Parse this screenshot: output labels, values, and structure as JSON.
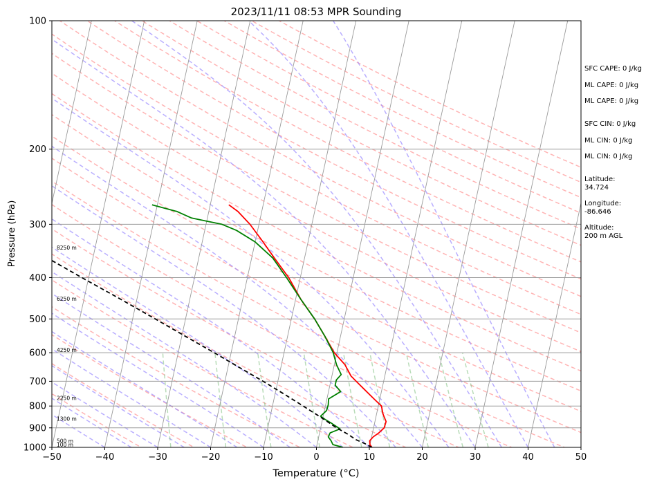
{
  "chart_data": {
    "type": "line",
    "title": "2023/11/11 08:53 MPR Sounding",
    "xlabel": "Temperature (°C)",
    "ylabel": "Pressure (hPa)",
    "xlim": [
      -50,
      50
    ],
    "ylim": [
      1000,
      100
    ],
    "y_scale": "log",
    "skew": true,
    "x_ticks": [
      "−50",
      "−40",
      "−30",
      "−20",
      "−10",
      "0",
      "10",
      "20",
      "30",
      "40",
      "50"
    ],
    "y_ticks": [
      {
        "p": 100,
        "label": "100"
      },
      {
        "p": 200,
        "label": "200"
      },
      {
        "p": 300,
        "label": "300"
      },
      {
        "p": 400,
        "label": "400"
      },
      {
        "p": 500,
        "label": "500"
      },
      {
        "p": 600,
        "label": "600"
      },
      {
        "p": 700,
        "label": "700"
      },
      {
        "p": 800,
        "label": "800"
      },
      {
        "p": 900,
        "label": "900"
      },
      {
        "p": 1000,
        "label": "1000"
      }
    ],
    "height_labels": [
      {
        "p": 1000,
        "label": "100 m"
      },
      {
        "p": 980,
        "label": "500 m"
      },
      {
        "p": 869,
        "label": "1300 m"
      },
      {
        "p": 778,
        "label": "2250 m"
      },
      {
        "p": 600,
        "label": "4250 m"
      },
      {
        "p": 455,
        "label": "6250 m"
      },
      {
        "p": 345,
        "label": "8250 m"
      }
    ],
    "series": [
      {
        "color": "#ff0000",
        "points": [
          [
            1000,
            10.5
          ],
          [
            985,
            10.0
          ],
          [
            965,
            9.8
          ],
          [
            945,
            10.3
          ],
          [
            925,
            11.2
          ],
          [
            900,
            12.0
          ],
          [
            870,
            12.1
          ],
          [
            835,
            11.2
          ],
          [
            800,
            10.6
          ],
          [
            770,
            8.9
          ],
          [
            730,
            6.6
          ],
          [
            700,
            4.8
          ],
          [
            680,
            3.6
          ],
          [
            640,
            2.0
          ],
          [
            600,
            -0.5
          ],
          [
            550,
            -2.9
          ],
          [
            500,
            -5.6
          ],
          [
            450,
            -9.0
          ],
          [
            400,
            -12.2
          ],
          [
            360,
            -15.7
          ],
          [
            330,
            -18.5
          ],
          [
            300,
            -21.7
          ],
          [
            280,
            -24.5
          ],
          [
            270,
            -26.5
          ]
        ]
      },
      {
        "color": "#008000",
        "points": [
          [
            1000,
            5.0
          ],
          [
            985,
            3.0
          ],
          [
            965,
            2.5
          ],
          [
            945,
            1.8
          ],
          [
            925,
            2.0
          ],
          [
            905,
            3.7
          ],
          [
            880,
            2.0
          ],
          [
            860,
            0.5
          ],
          [
            845,
            -0.5
          ],
          [
            820,
            0.4
          ],
          [
            795,
            0.5
          ],
          [
            770,
            0.3
          ],
          [
            740,
            2.3
          ],
          [
            715,
            1.0
          ],
          [
            695,
            1.0
          ],
          [
            675,
            1.7
          ],
          [
            640,
            0.4
          ],
          [
            600,
            -0.7
          ],
          [
            550,
            -2.9
          ],
          [
            500,
            -5.6
          ],
          [
            450,
            -9.0
          ],
          [
            400,
            -12.6
          ],
          [
            360,
            -16.0
          ],
          [
            330,
            -20.0
          ],
          [
            310,
            -24.0
          ],
          [
            300,
            -27.0
          ],
          [
            295,
            -30.0
          ],
          [
            290,
            -33.0
          ],
          [
            280,
            -36.0
          ],
          [
            270,
            -41.0
          ]
        ]
      },
      {
        "color": "#000000",
        "dashed": true,
        "points": [
          [
            1000,
            10.5
          ],
          [
            980,
            9.0
          ],
          [
            960,
            7.2
          ],
          [
            930,
            5.3
          ],
          [
            900,
            3.0
          ],
          [
            850,
            -0.4
          ],
          [
            800,
            -4.2
          ],
          [
            750,
            -8.3
          ],
          [
            700,
            -12.8
          ],
          [
            650,
            -17.8
          ],
          [
            600,
            -23.2
          ],
          [
            550,
            -29.2
          ],
          [
            500,
            -35.7
          ],
          [
            450,
            -43.0
          ],
          [
            400,
            -51.3
          ],
          [
            350,
            -60.5
          ],
          [
            300,
            -71.0
          ],
          [
            270,
            -77.6
          ]
        ]
      }
    ]
  },
  "annotations": {
    "sfc_cape": "SFC CAPE: 0 J/kg",
    "ml_cape_1": "ML CAPE: 0 J/kg",
    "ml_cape_2": "ML CAPE: 0 J/kg",
    "sfc_cin": "SFC CIN: 0 J/kg",
    "ml_cin_1": "ML CIN: 0 J/kg",
    "ml_cin_2": "ML CIN: 0 J/kg",
    "latitude_label": "Latitude:",
    "latitude_value": "34.724",
    "longitude_label": "Longitude:",
    "longitude_value": "-86.646",
    "altitude_label": "Altitude:",
    "altitude_value": "200 m AGL"
  },
  "colors": {
    "dry_adiabat": "#ff9999",
    "moist_adiabat": "#9b8cff",
    "mixing_ratio": "#88c488",
    "isotherm": "#9a9a9a",
    "isobar": "#9a9a9a"
  }
}
